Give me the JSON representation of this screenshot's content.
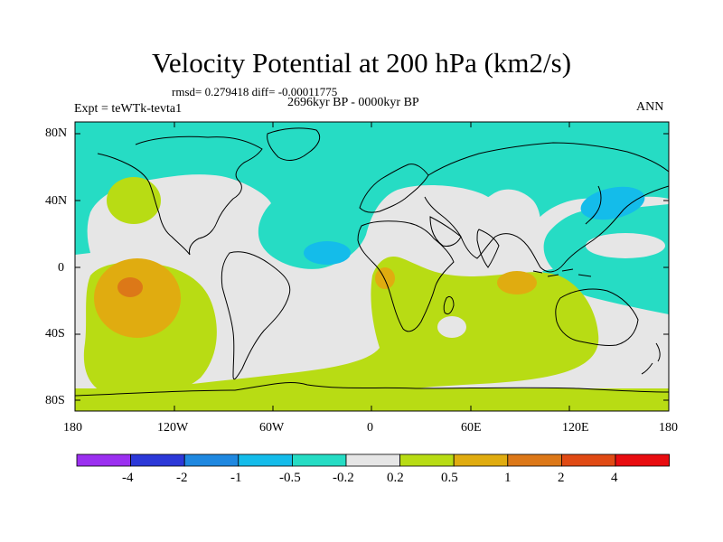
{
  "title": "Velocity Potential at 200 hPa (km2/s)",
  "stats_text": "rmsd= 0.279418 diff= -0.00011775",
  "period_text": "2696kyr BP - 0000kyr BP",
  "experiment_text": "Expt = teWTk-tevta1",
  "season_label": "ANN",
  "axes": {
    "lat_ticks": [
      "80N",
      "40N",
      "0",
      "40S",
      "80S"
    ],
    "lon_ticks": [
      "180",
      "120W",
      "60W",
      "0",
      "60E",
      "120E",
      "180"
    ]
  },
  "colorbar": {
    "colors": [
      "#9b30f0",
      "#2c38d8",
      "#1f88e0",
      "#14bcea",
      "#26dcc4",
      "#e6e6e6",
      "#b8dc14",
      "#e0ac10",
      "#dc7818",
      "#e04a14",
      "#e80c10"
    ],
    "labels": [
      "-4",
      "-2",
      "-1",
      "-0.5",
      "-0.2",
      "0.2",
      "0.5",
      "1",
      "2",
      "4"
    ]
  },
  "field_colors": {
    "neutral": "#e6e6e6",
    "low_negative": "#26dcc4",
    "mid_negative": "#14bcea",
    "low_positive": "#b8dc14",
    "mid_positive": "#e0ac10",
    "high_positive": "#dc7818"
  },
  "coastline_color": "#000000"
}
